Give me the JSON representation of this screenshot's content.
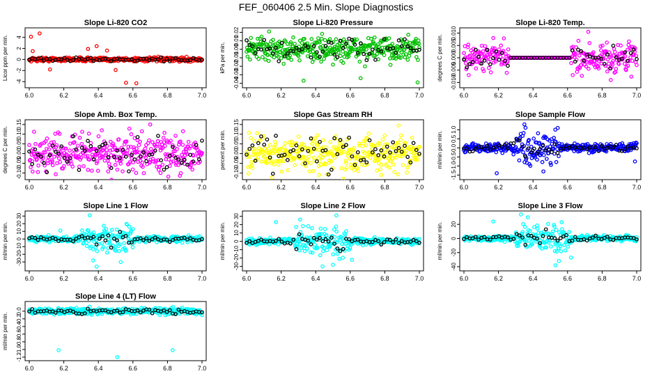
{
  "title": "FEF_060406  2.5 Min. Slope Diagnostics",
  "chart_data": [
    {
      "type": "scatter",
      "title": "Slope Li-820 CO2",
      "ylabel": "Licor ppm per min.",
      "color": "#ff0000",
      "xlim": [
        6.0,
        7.0
      ],
      "ylim": [
        -4.6,
        5.2
      ],
      "xticks": [
        6.0,
        6.2,
        6.4,
        6.6,
        6.8,
        7.0
      ],
      "yticks": [
        -4,
        -2,
        0,
        2,
        4
      ],
      "spread": 0.18,
      "outliers": [
        [
          6.01,
          4.1
        ],
        [
          6.06,
          4.7
        ],
        [
          6.02,
          1.5
        ],
        [
          6.12,
          -1.8
        ],
        [
          6.34,
          1.9
        ],
        [
          6.39,
          2.4
        ],
        [
          6.45,
          1.6
        ],
        [
          6.5,
          -1.9
        ],
        [
          6.56,
          -4.2
        ],
        [
          6.62,
          -4.3
        ]
      ]
    },
    {
      "type": "scatter",
      "title": "Slope Li-820 Pressure",
      "ylabel": "kPa per min.",
      "color": "#00c000",
      "xlim": [
        6.0,
        7.0
      ],
      "ylim": [
        -0.042,
        0.022
      ],
      "xticks": [
        6.0,
        6.2,
        6.4,
        6.6,
        6.8,
        7.0
      ],
      "yticks": [
        -0.04,
        -0.03,
        -0.02,
        -0.01,
        0.0,
        0.01,
        0.02
      ],
      "spread": 0.007,
      "outliers": [
        [
          6.13,
          0.021
        ],
        [
          6.33,
          -0.037
        ],
        [
          6.66,
          -0.034
        ],
        [
          6.99,
          -0.039
        ],
        [
          6.02,
          -0.012
        ],
        [
          6.5,
          -0.018
        ]
      ]
    },
    {
      "type": "scatter",
      "title": "Slope Li-820 Temp.",
      "ylabel": "degrees C per min.",
      "color": "#ff00ff",
      "xlim": [
        6.0,
        7.0
      ],
      "ylim": [
        -0.011,
        0.011
      ],
      "xticks": [
        6.0,
        6.2,
        6.4,
        6.6,
        6.8,
        7.0
      ],
      "yticks": [
        -0.01,
        -0.005,
        0.0,
        0.005,
        0.01
      ],
      "spread": 0.003,
      "flatRange": [
        6.26,
        6.62
      ],
      "outliers": [
        [
          6.17,
          0.008
        ],
        [
          6.72,
          0.0105
        ],
        [
          6.85,
          -0.009
        ],
        [
          6.63,
          -0.007
        ]
      ]
    },
    {
      "type": "scatter",
      "title": "Slope Amb. Box Temp.",
      "ylabel": "degrees C per min.",
      "color": "#ff00ff",
      "xlim": [
        6.0,
        7.0
      ],
      "ylim": [
        -0.12,
        0.16
      ],
      "xticks": [
        6.0,
        6.2,
        6.4,
        6.6,
        6.8,
        7.0
      ],
      "yticks": [
        -0.1,
        -0.05,
        0.0,
        0.05,
        0.1,
        0.15
      ],
      "spread": 0.045,
      "outliers": [
        [
          6.7,
          0.15
        ],
        [
          6.89,
          0.115
        ],
        [
          6.76,
          -0.1
        ],
        [
          6.42,
          0.12
        ]
      ]
    },
    {
      "type": "scatter",
      "title": "Slope Gas Stream RH",
      "ylabel": "percent per min.",
      "color": "#ffff00",
      "xlim": [
        6.0,
        7.0
      ],
      "ylim": [
        -0.12,
        0.16
      ],
      "xticks": [
        6.0,
        6.2,
        6.4,
        6.6,
        6.8,
        7.0
      ],
      "yticks": [
        -0.1,
        -0.05,
        0.0,
        0.05,
        0.1,
        0.15
      ],
      "spread": 0.045,
      "outliers": [
        [
          6.88,
          0.145
        ],
        [
          6.42,
          -0.11
        ],
        [
          6.78,
          -0.11
        ]
      ]
    },
    {
      "type": "scatter",
      "title": "Slope Sample Flow",
      "ylabel": "ml/min per min.",
      "color": "#0000ff",
      "xlim": [
        6.0,
        7.0
      ],
      "ylim": [
        -1.6,
        1.4
      ],
      "xticks": [
        6.0,
        6.2,
        6.4,
        6.6,
        6.8,
        7.0
      ],
      "yticks": [
        -1.5,
        -1.0,
        -0.5,
        0.0,
        0.5,
        1.0
      ],
      "spread": 0.12,
      "burst": [
        6.3,
        6.55,
        0.45
      ],
      "outliers": [
        [
          6.35,
          1.3
        ],
        [
          6.19,
          -1.4
        ],
        [
          6.46,
          -1.3
        ],
        [
          6.99,
          -0.75
        ]
      ]
    },
    {
      "type": "scatter",
      "title": "Slope Line 1 Flow",
      "ylabel": "ml/min per min.",
      "color": "#00ffff",
      "xlim": [
        6.0,
        7.0
      ],
      "ylim": [
        -38,
        33
      ],
      "xticks": [
        6.0,
        6.2,
        6.4,
        6.6,
        6.8,
        7.0
      ],
      "yticks": [
        -30,
        -20,
        -10,
        0,
        10,
        20,
        30
      ],
      "spread": 1.8,
      "burst": [
        6.3,
        6.6,
        8
      ],
      "outliers": [
        [
          6.35,
          31
        ],
        [
          6.37,
          -28
        ],
        [
          6.39,
          -36
        ],
        [
          6.18,
          11
        ],
        [
          6.53,
          -30
        ],
        [
          6.6,
          13
        ]
      ]
    },
    {
      "type": "scatter",
      "title": "Slope Line 2 Flow",
      "ylabel": "ml/min per min.",
      "color": "#00ffff",
      "xlim": [
        6.0,
        7.0
      ],
      "ylim": [
        -32,
        33
      ],
      "xticks": [
        6.0,
        6.2,
        6.4,
        6.6,
        6.8,
        7.0
      ],
      "yticks": [
        -30,
        -20,
        -10,
        0,
        10,
        20,
        30
      ],
      "spread": 1.8,
      "burst": [
        6.28,
        6.6,
        8
      ],
      "outliers": [
        [
          6.17,
          23
        ],
        [
          6.31,
          26
        ],
        [
          6.44,
          -30
        ],
        [
          6.52,
          31
        ],
        [
          6.61,
          -22
        ],
        [
          6.5,
          -28
        ]
      ]
    },
    {
      "type": "scatter",
      "title": "Slope Line 3 Flow",
      "ylabel": "ml/min per min.",
      "color": "#00ffff",
      "xlim": [
        6.0,
        7.0
      ],
      "ylim": [
        -42,
        35
      ],
      "xticks": [
        6.0,
        6.2,
        6.4,
        6.6,
        6.8,
        7.0
      ],
      "yticks": [
        -40,
        -20,
        0,
        20
      ],
      "spread": 1.8,
      "burst": [
        6.3,
        6.62,
        9
      ],
      "outliers": [
        [
          6.33,
          34
        ],
        [
          6.37,
          30
        ],
        [
          6.53,
          -38
        ],
        [
          6.55,
          -32
        ],
        [
          6.62,
          -27
        ],
        [
          6.17,
          24
        ]
      ]
    },
    {
      "type": "scatter",
      "title": "Slope Line 4 (LT) Flow",
      "ylabel": "ml/min per min.",
      "color": "#00ffff",
      "xlim": [
        6.0,
        7.0
      ],
      "ylim": [
        -1.22,
        0.18
      ],
      "xticks": [
        6.0,
        6.2,
        6.4,
        6.6,
        6.8,
        7.0
      ],
      "yticks": [
        -1.2,
        -1.0,
        -0.8,
        -0.6,
        -0.4,
        -0.2,
        0.0
      ],
      "spread": 0.04,
      "outliers": [
        [
          6.17,
          -1.02
        ],
        [
          6.51,
          -1.2
        ],
        [
          6.83,
          -1.02
        ],
        [
          6.35,
          0.12
        ]
      ]
    }
  ]
}
